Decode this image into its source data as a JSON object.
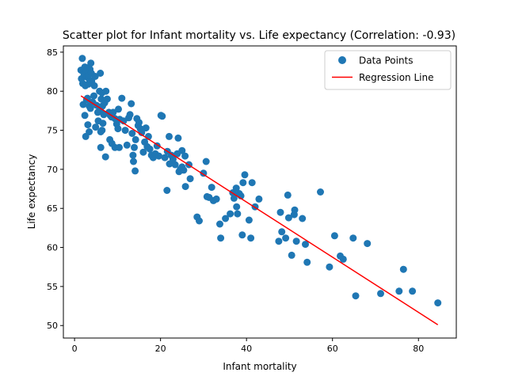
{
  "chart_data": {
    "type": "scatter",
    "title": "Scatter plot for Infant mortality vs. Life expectancy (Correlation: -0.93)",
    "xlabel": "Infant mortality",
    "ylabel": "Life expectancy",
    "xlim": [
      -2.6,
      88.8
    ],
    "ylim": [
      48.4,
      85.8
    ],
    "xticks": [
      0,
      20,
      40,
      60,
      80
    ],
    "yticks": [
      50,
      55,
      60,
      65,
      70,
      75,
      80,
      85
    ],
    "grid": false,
    "legend_position": "top-right",
    "series": [
      {
        "name": "Data Points",
        "kind": "scatter",
        "color": "#1f77b4",
        "points": [
          [
            1.8,
            84.2
          ],
          [
            1.5,
            82.7
          ],
          [
            1.6,
            81.6
          ],
          [
            1.9,
            81.0
          ],
          [
            2.2,
            82.2
          ],
          [
            2.4,
            83.1
          ],
          [
            2.7,
            82.5
          ],
          [
            2.9,
            81.8
          ],
          [
            3.1,
            83.0
          ],
          [
            3.3,
            82.0
          ],
          [
            3.5,
            81.2
          ],
          [
            3.6,
            82.8
          ],
          [
            3.8,
            83.6
          ],
          [
            3.9,
            82.3
          ],
          [
            4.0,
            81.3
          ],
          [
            3.2,
            80.9
          ],
          [
            2.5,
            80.7
          ],
          [
            2.0,
            78.3
          ],
          [
            2.4,
            76.9
          ],
          [
            2.8,
            78.9
          ],
          [
            3.0,
            79.1
          ],
          [
            3.4,
            78.1
          ],
          [
            3.7,
            77.8
          ],
          [
            4.2,
            78.6
          ],
          [
            4.5,
            79.4
          ],
          [
            4.6,
            80.7
          ],
          [
            4.8,
            81.9
          ],
          [
            5.1,
            78.2
          ],
          [
            5.4,
            77.3
          ],
          [
            5.7,
            78.0
          ],
          [
            6.0,
            77.6
          ],
          [
            6.2,
            79.0
          ],
          [
            6.5,
            78.1
          ],
          [
            6.8,
            77.0
          ],
          [
            5.8,
            80.0
          ],
          [
            6.4,
            79.8
          ],
          [
            7.0,
            78.5
          ],
          [
            7.3,
            80.0
          ],
          [
            7.6,
            79.0
          ],
          [
            8.0,
            77.3
          ],
          [
            8.3,
            76.9
          ],
          [
            8.6,
            76.7
          ],
          [
            9.0,
            77.3
          ],
          [
            9.4,
            76.5
          ],
          [
            9.8,
            75.8
          ],
          [
            10.2,
            77.7
          ],
          [
            10.5,
            76.4
          ],
          [
            6.0,
            82.3
          ],
          [
            3.1,
            75.7
          ],
          [
            2.6,
            74.2
          ],
          [
            3.4,
            74.8
          ],
          [
            4.9,
            75.4
          ],
          [
            5.5,
            76.2
          ],
          [
            6.1,
            74.8
          ],
          [
            6.4,
            75.0
          ],
          [
            6.6,
            75.9
          ],
          [
            7.2,
            71.6
          ],
          [
            6.1,
            72.8
          ],
          [
            8.2,
            73.8
          ],
          [
            8.7,
            73.3
          ],
          [
            9.4,
            72.8
          ],
          [
            10.1,
            75.2
          ],
          [
            10.4,
            72.8
          ],
          [
            11.0,
            79.1
          ],
          [
            11.4,
            76.2
          ],
          [
            11.8,
            75.0
          ],
          [
            12.2,
            73.1
          ],
          [
            12.6,
            76.6
          ],
          [
            12.9,
            77.0
          ],
          [
            13.2,
            78.4
          ],
          [
            13.4,
            74.6
          ],
          [
            13.6,
            71.8
          ],
          [
            13.9,
            72.8
          ],
          [
            14.2,
            73.8
          ],
          [
            14.5,
            76.5
          ],
          [
            14.8,
            75.6
          ],
          [
            15.0,
            76.0
          ],
          [
            15.3,
            75.2
          ],
          [
            15.6,
            74.7
          ],
          [
            16.0,
            72.2
          ],
          [
            16.3,
            73.5
          ],
          [
            16.6,
            75.3
          ],
          [
            16.9,
            72.9
          ],
          [
            17.2,
            74.2
          ],
          [
            17.5,
            72.6
          ],
          [
            17.9,
            71.8
          ],
          [
            18.3,
            71.5
          ],
          [
            18.8,
            72.0
          ],
          [
            19.2,
            73.0
          ],
          [
            19.6,
            71.7
          ],
          [
            20.1,
            76.9
          ],
          [
            20.4,
            76.8
          ],
          [
            21.0,
            71.5
          ],
          [
            21.6,
            72.3
          ],
          [
            22.1,
            70.7
          ],
          [
            22.5,
            71.8
          ],
          [
            22.9,
            71.3
          ],
          [
            23.4,
            70.6
          ],
          [
            23.9,
            72.0
          ],
          [
            24.3,
            69.7
          ],
          [
            24.6,
            70.0
          ],
          [
            25.0,
            70.3
          ],
          [
            25.4,
            69.9
          ],
          [
            24.1,
            74.0
          ],
          [
            22.0,
            74.2
          ],
          [
            25.0,
            72.4
          ],
          [
            25.7,
            71.7
          ],
          [
            21.5,
            67.3
          ],
          [
            25.8,
            67.8
          ],
          [
            26.6,
            70.6
          ],
          [
            26.9,
            68.8
          ],
          [
            13.7,
            71.0
          ],
          [
            14.1,
            69.8
          ],
          [
            28.5,
            63.9
          ],
          [
            29.0,
            63.4
          ],
          [
            30.0,
            69.5
          ],
          [
            30.6,
            71.0
          ],
          [
            31.3,
            66.4
          ],
          [
            31.9,
            67.7
          ],
          [
            32.3,
            66.0
          ],
          [
            33.0,
            66.2
          ],
          [
            33.8,
            63.0
          ],
          [
            34.0,
            61.2
          ],
          [
            35.1,
            63.7
          ],
          [
            36.2,
            64.3
          ],
          [
            36.8,
            67.0
          ],
          [
            37.1,
            66.3
          ],
          [
            37.6,
            67.6
          ],
          [
            37.9,
            64.3
          ],
          [
            38.3,
            66.9
          ],
          [
            38.7,
            66.6
          ],
          [
            39.0,
            61.6
          ],
          [
            39.2,
            68.3
          ],
          [
            39.6,
            69.3
          ],
          [
            40.6,
            63.5
          ],
          [
            41.0,
            61.2
          ],
          [
            41.3,
            68.3
          ],
          [
            42.0,
            65.2
          ],
          [
            42.9,
            66.2
          ],
          [
            37.7,
            65.2
          ],
          [
            30.8,
            66.5
          ],
          [
            47.5,
            60.8
          ],
          [
            47.9,
            64.5
          ],
          [
            48.2,
            62.0
          ],
          [
            49.1,
            61.2
          ],
          [
            49.8,
            63.8
          ],
          [
            49.6,
            66.7
          ],
          [
            50.5,
            59.0
          ],
          [
            51.1,
            64.2
          ],
          [
            51.2,
            64.8
          ],
          [
            51.6,
            60.8
          ],
          [
            53.0,
            63.7
          ],
          [
            53.7,
            60.4
          ],
          [
            54.1,
            58.1
          ],
          [
            57.2,
            67.1
          ],
          [
            59.3,
            57.5
          ],
          [
            60.5,
            61.5
          ],
          [
            61.8,
            58.9
          ],
          [
            62.5,
            58.5
          ],
          [
            64.8,
            61.2
          ],
          [
            65.4,
            53.8
          ],
          [
            68.1,
            60.5
          ],
          [
            71.2,
            54.1
          ],
          [
            75.5,
            54.4
          ],
          [
            76.5,
            57.2
          ],
          [
            78.6,
            54.4
          ],
          [
            84.5,
            52.9
          ]
        ]
      },
      {
        "name": "Regression Line",
        "kind": "line",
        "color": "#ff0000",
        "points": [
          [
            1.5,
            79.4
          ],
          [
            84.5,
            50.1
          ]
        ]
      }
    ]
  }
}
